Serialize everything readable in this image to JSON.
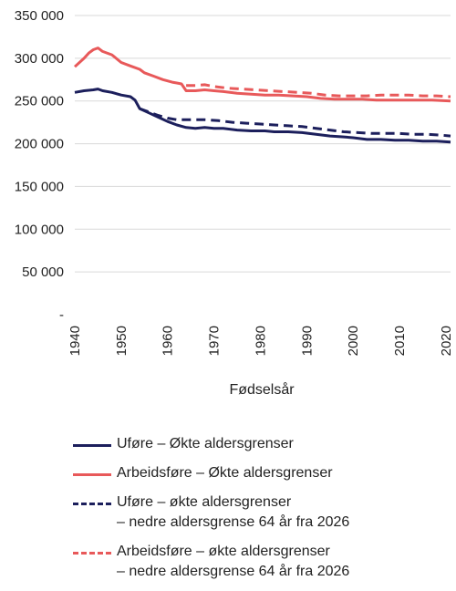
{
  "chart_data": {
    "type": "line",
    "xlabel": "Fødselsår",
    "ylabel": "",
    "xlim": [
      1940,
      2021
    ],
    "ylim": [
      0,
      350000
    ],
    "x_ticks": [
      "1940",
      "1950",
      "1960",
      "1970",
      "1980",
      "1990",
      "2000",
      "2010",
      "2020"
    ],
    "y_ticks": [
      {
        "value": 0,
        "label": "-"
      },
      {
        "value": 50000,
        "label": "50 000"
      },
      {
        "value": 100000,
        "label": "100 000"
      },
      {
        "value": 150000,
        "label": "150 000"
      },
      {
        "value": 200000,
        "label": "200 000"
      },
      {
        "value": 250000,
        "label": "250 000"
      },
      {
        "value": 300000,
        "label": "300 000"
      },
      {
        "value": 350000,
        "label": "350 000"
      }
    ],
    "grid": true,
    "legend_position": "bottom",
    "series": [
      {
        "name": "Uføre – Økte aldersgrenser",
        "color": "#1c1f5c",
        "dash": "solid",
        "points": [
          [
            1940,
            260000
          ],
          [
            1942,
            262000
          ],
          [
            1944,
            263000
          ],
          [
            1945,
            264000
          ],
          [
            1946,
            262000
          ],
          [
            1948,
            260000
          ],
          [
            1950,
            257000
          ],
          [
            1952,
            255000
          ],
          [
            1953,
            251000
          ],
          [
            1954,
            241000
          ],
          [
            1956,
            236000
          ],
          [
            1958,
            231000
          ],
          [
            1960,
            226000
          ],
          [
            1962,
            222000
          ],
          [
            1964,
            219000
          ],
          [
            1966,
            218000
          ],
          [
            1968,
            219000
          ],
          [
            1970,
            218000
          ],
          [
            1972,
            218000
          ],
          [
            1975,
            216000
          ],
          [
            1978,
            215000
          ],
          [
            1981,
            215000
          ],
          [
            1983,
            214000
          ],
          [
            1986,
            214000
          ],
          [
            1989,
            213000
          ],
          [
            1992,
            211000
          ],
          [
            1995,
            209000
          ],
          [
            1998,
            208000
          ],
          [
            2000,
            207000
          ],
          [
            2003,
            205000
          ],
          [
            2006,
            205000
          ],
          [
            2009,
            204000
          ],
          [
            2012,
            204000
          ],
          [
            2015,
            203000
          ],
          [
            2018,
            203000
          ],
          [
            2021,
            202000
          ]
        ]
      },
      {
        "name": "Arbeidsføre – Økte aldersgrenser",
        "color": "#e8595a",
        "dash": "solid",
        "points": [
          [
            1940,
            290000
          ],
          [
            1942,
            300000
          ],
          [
            1943,
            306000
          ],
          [
            1944,
            310000
          ],
          [
            1945,
            312000
          ],
          [
            1946,
            308000
          ],
          [
            1948,
            304000
          ],
          [
            1950,
            295000
          ],
          [
            1952,
            291000
          ],
          [
            1954,
            287000
          ],
          [
            1955,
            283000
          ],
          [
            1957,
            279000
          ],
          [
            1959,
            275000
          ],
          [
            1961,
            272000
          ],
          [
            1962,
            271000
          ],
          [
            1963,
            270000
          ],
          [
            1964,
            262000
          ],
          [
            1966,
            262000
          ],
          [
            1968,
            263000
          ],
          [
            1970,
            262000
          ],
          [
            1972,
            261000
          ],
          [
            1975,
            259000
          ],
          [
            1978,
            258000
          ],
          [
            1981,
            257000
          ],
          [
            1984,
            257000
          ],
          [
            1987,
            256000
          ],
          [
            1990,
            255000
          ],
          [
            1993,
            253000
          ],
          [
            1996,
            252000
          ],
          [
            1999,
            252000
          ],
          [
            2002,
            252000
          ],
          [
            2005,
            251000
          ],
          [
            2008,
            251000
          ],
          [
            2011,
            251000
          ],
          [
            2014,
            251000
          ],
          [
            2017,
            251000
          ],
          [
            2021,
            250000
          ]
        ]
      },
      {
        "name": "Uføre – økte aldersgrenser – nedre aldersgrense 64 år fra 2026",
        "color": "#1c1f5c",
        "dash": "dashed",
        "points": [
          [
            1954,
            241000
          ],
          [
            1956,
            237000
          ],
          [
            1958,
            233000
          ],
          [
            1960,
            230000
          ],
          [
            1962,
            228000
          ],
          [
            1965,
            228000
          ],
          [
            1968,
            228000
          ],
          [
            1971,
            227000
          ],
          [
            1974,
            225000
          ],
          [
            1977,
            224000
          ],
          [
            1980,
            223000
          ],
          [
            1983,
            222000
          ],
          [
            1986,
            221000
          ],
          [
            1989,
            220000
          ],
          [
            1992,
            218000
          ],
          [
            1995,
            216000
          ],
          [
            1998,
            214000
          ],
          [
            2001,
            213000
          ],
          [
            2004,
            212000
          ],
          [
            2007,
            212000
          ],
          [
            2010,
            212000
          ],
          [
            2013,
            211000
          ],
          [
            2016,
            211000
          ],
          [
            2019,
            210000
          ],
          [
            2021,
            209000
          ]
        ]
      },
      {
        "name": "Arbeidsføre – økte aldersgrenser – nedre aldersgrense 64 år fra 2026",
        "color": "#e8595a",
        "dash": "dashed",
        "points": [
          [
            1964,
            268000
          ],
          [
            1966,
            268000
          ],
          [
            1968,
            269000
          ],
          [
            1970,
            267000
          ],
          [
            1973,
            265000
          ],
          [
            1976,
            264000
          ],
          [
            1979,
            263000
          ],
          [
            1982,
            262000
          ],
          [
            1985,
            261000
          ],
          [
            1988,
            260000
          ],
          [
            1991,
            259000
          ],
          [
            1994,
            257000
          ],
          [
            1997,
            256000
          ],
          [
            2000,
            256000
          ],
          [
            2003,
            256000
          ],
          [
            2006,
            257000
          ],
          [
            2009,
            257000
          ],
          [
            2012,
            257000
          ],
          [
            2015,
            256000
          ],
          [
            2018,
            256000
          ],
          [
            2021,
            255000
          ]
        ]
      }
    ],
    "legend": [
      {
        "lines": [
          "Uføre – Økte aldersgrenser"
        ],
        "color": "#1c1f5c",
        "dash": "solid"
      },
      {
        "lines": [
          "Arbeidsføre – Økte aldersgrenser"
        ],
        "color": "#e8595a",
        "dash": "solid"
      },
      {
        "lines": [
          "Uføre – økte aldersgrenser",
          "– nedre aldersgrense 64 år fra 2026"
        ],
        "color": "#1c1f5c",
        "dash": "dashed"
      },
      {
        "lines": [
          "Arbeidsføre – økte aldersgrenser",
          "– nedre aldersgrense 64 år fra 2026"
        ],
        "color": "#e8595a",
        "dash": "dashed"
      }
    ]
  }
}
